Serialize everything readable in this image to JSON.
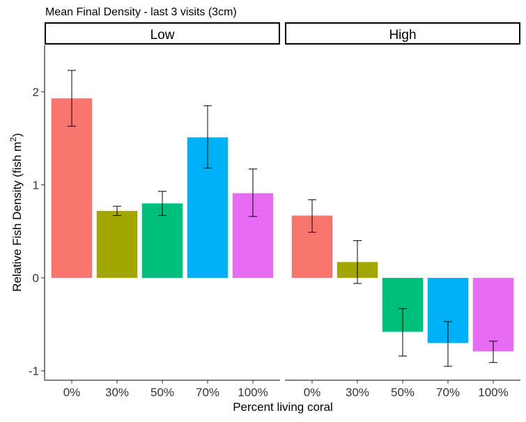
{
  "chart_data": {
    "type": "bar",
    "title": "Mean Final Density - last 3 visits (3cm)",
    "xlabel": "Percent living coral",
    "ylabel": "Relative Fish Density (fish m",
    "ylabel_superscript": "2",
    "ylabel_suffix": ")",
    "ylim": [
      -1.1,
      2.5
    ],
    "yticks": [
      "2",
      "1",
      "0",
      "-1"
    ],
    "ytick_values": [
      2,
      1,
      0,
      -1
    ],
    "categories": [
      "0%",
      "30%",
      "50%",
      "70%",
      "100%"
    ],
    "colors": [
      "#F8766D",
      "#A3A500",
      "#00BF7D",
      "#00B0F6",
      "#E76BF3"
    ],
    "grid": false,
    "legend": "none",
    "panels": [
      {
        "label": "Low",
        "values": [
          1.93,
          0.72,
          0.8,
          1.51,
          0.91
        ],
        "err_low": [
          1.63,
          0.67,
          0.67,
          1.18,
          0.66
        ],
        "err_high": [
          2.23,
          0.77,
          0.93,
          1.85,
          1.17
        ]
      },
      {
        "label": "High",
        "values": [
          0.67,
          0.17,
          -0.58,
          -0.7,
          -0.79
        ],
        "err_low": [
          0.49,
          -0.06,
          -0.84,
          -0.95,
          -0.91
        ],
        "err_high": [
          0.84,
          0.4,
          -0.33,
          -0.47,
          -0.68
        ]
      }
    ]
  }
}
